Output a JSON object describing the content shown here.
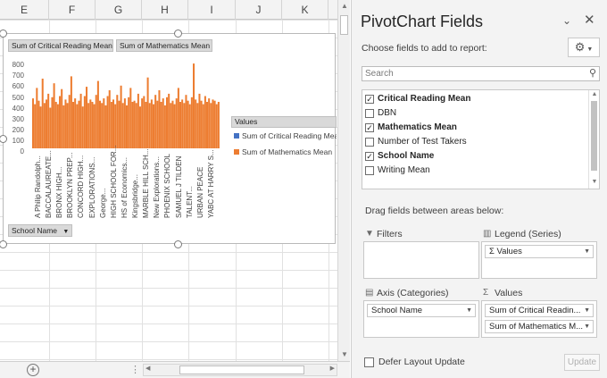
{
  "sheet": {
    "columns": [
      "E",
      "F",
      "G",
      "H",
      "I",
      "J",
      "K"
    ],
    "add_sheet_icon": "plus-circle-icon",
    "ellipsis": "⋮"
  },
  "chart": {
    "field_buttons": {
      "series1": "Sum of Critical Reading Mean",
      "series2": "Sum of Mathematics Mean",
      "axis": "School Name"
    },
    "y_ticks": [
      "800",
      "700",
      "600",
      "500",
      "400",
      "300",
      "200",
      "100",
      "0"
    ],
    "x_labels": [
      "A Philip Randolph...",
      "BACCALAUREATE...",
      "BRONX HIGH...",
      "BROOKLYN PREP...",
      "CONCORD HIGH...",
      "EXPLORATIONS...",
      "George...",
      "HIGH SCHOOL FOR...",
      "HS of Economics...",
      "Kingsbridge...",
      "MARBLE HILL SCH...",
      "New Explorations...",
      "PHOENIX SCHOOL",
      "SAMUEL J TILDEN",
      "TALENT...",
      "URBAN PEACE",
      "YABC AT HARRY S..."
    ],
    "legend": {
      "title": "Values",
      "items": [
        {
          "label": "Sum of Critical Reading Mean",
          "color": "#4472c4"
        },
        {
          "label": "Sum of Mathematics Mean",
          "color": "#ed7d31"
        }
      ]
    }
  },
  "chart_data": {
    "type": "bar",
    "title": "",
    "ylim": [
      0,
      800
    ],
    "series": [
      {
        "name": "Sum of Critical Reading Mean",
        "color": "#4472c4"
      },
      {
        "name": "Sum of Mathematics Mean",
        "color": "#ed7d31",
        "values": [
          430,
          380,
          520,
          410,
          360,
          600,
          390,
          420,
          470,
          350,
          440,
          560,
          400,
          380,
          450,
          510,
          370,
          420,
          390,
          460,
          620,
          400,
          430,
          380,
          410,
          470,
          360,
          450,
          530,
          390,
          420,
          400,
          380,
          460,
          580,
          410,
          390,
          430,
          370,
          450,
          500,
          400,
          420,
          380,
          460,
          410,
          540,
          390,
          430,
          370,
          440,
          520,
          400,
          410,
          390,
          470,
          360,
          430,
          450,
          400,
          610,
          390,
          420,
          380,
          460,
          410,
          500,
          400,
          430,
          370,
          440,
          470,
          390,
          410,
          380,
          430,
          520,
          400,
          420,
          390,
          460,
          410,
          380,
          440,
          730,
          420,
          390,
          470,
          410,
          380,
          450,
          400,
          430,
          390,
          420,
          410,
          380,
          400
        ]
      }
    ],
    "legend_position": "right"
  },
  "pane": {
    "title": "PivotChart Fields",
    "dropdown_icon": "chevron-down-icon",
    "close_icon": "close-icon",
    "choose_label": "Choose fields to add to report:",
    "gear_icon": "gear-icon",
    "search_placeholder": "Search",
    "fields": [
      {
        "label": "Critical Reading Mean",
        "checked": true
      },
      {
        "label": "DBN",
        "checked": false
      },
      {
        "label": "Mathematics Mean",
        "checked": true
      },
      {
        "label": "Number of Test Takers",
        "checked": false
      },
      {
        "label": "School Name",
        "checked": true
      },
      {
        "label": "Writing Mean",
        "checked": false
      }
    ],
    "drag_label": "Drag fields between areas below:",
    "areas": {
      "filters": {
        "title": "Filters",
        "items": []
      },
      "legend": {
        "title": "Legend (Series)",
        "items": [
          "Σ Values"
        ]
      },
      "axis": {
        "title": "Axis (Categories)",
        "items": [
          "School Name"
        ]
      },
      "values": {
        "title": "Values",
        "items": [
          "Sum of Critical Readin...",
          "Sum of Mathematics M..."
        ]
      }
    },
    "defer_label": "Defer Layout Update",
    "update_label": "Update"
  }
}
